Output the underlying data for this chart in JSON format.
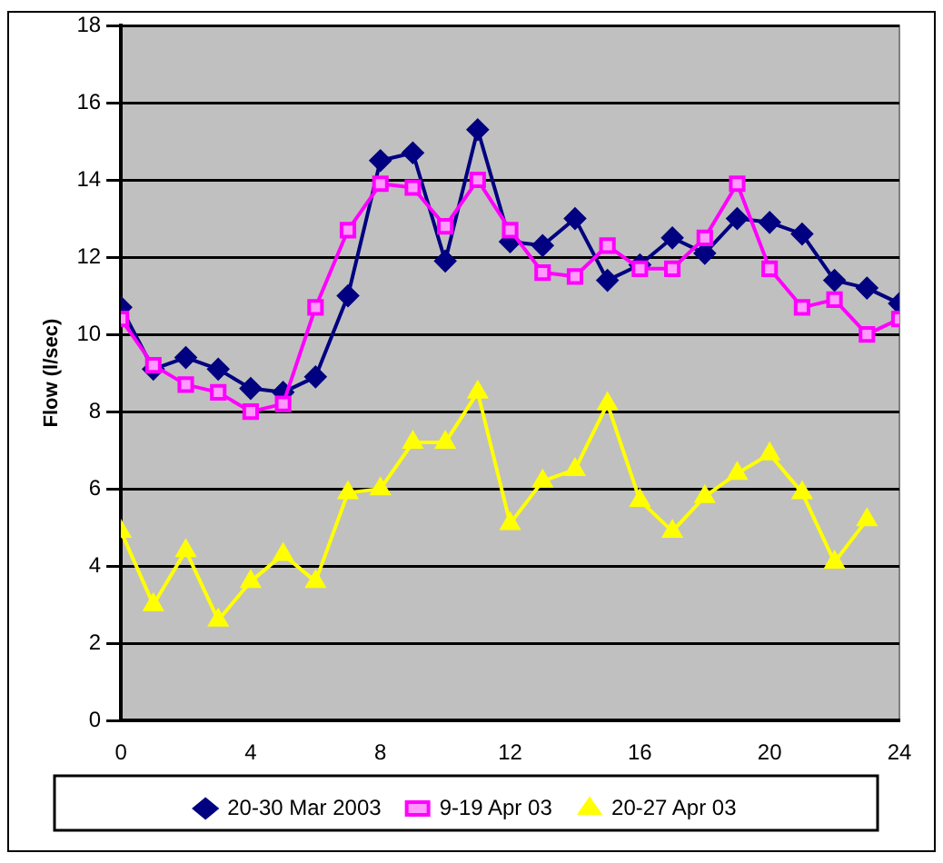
{
  "chart_data": {
    "type": "line",
    "ylabel": "Flow (l/sec)",
    "xlim": [
      0,
      24
    ],
    "xticks": [
      0,
      4,
      8,
      12,
      16,
      20,
      24
    ],
    "ylim": [
      0,
      18
    ],
    "yticks": [
      0,
      2,
      4,
      6,
      8,
      10,
      12,
      14,
      16,
      18
    ],
    "grid": "y",
    "legend": "bottom",
    "series": [
      {
        "name": "20-30 Mar 2003",
        "color": "#000080",
        "marker": "diamond",
        "x": [
          0,
          1,
          2,
          3,
          4,
          5,
          6,
          7,
          8,
          9,
          10,
          11,
          12,
          13,
          14,
          15,
          16,
          17,
          18,
          19,
          20,
          21,
          22,
          23,
          24
        ],
        "values": [
          10.7,
          9.1,
          9.4,
          9.1,
          8.6,
          8.5,
          8.9,
          11.0,
          14.5,
          14.7,
          11.9,
          15.3,
          12.4,
          12.3,
          13.0,
          11.4,
          11.8,
          12.5,
          12.1,
          13.0,
          12.9,
          12.6,
          11.4,
          11.2,
          10.8
        ]
      },
      {
        "name": "9-19 Apr 03",
        "color": "#ff00ff",
        "marker": "square",
        "x": [
          0,
          1,
          2,
          3,
          4,
          5,
          6,
          7,
          8,
          9,
          10,
          11,
          12,
          13,
          14,
          15,
          16,
          17,
          18,
          19,
          20,
          21,
          22,
          23,
          24
        ],
        "values": [
          10.4,
          9.2,
          8.7,
          8.5,
          8.0,
          8.2,
          10.7,
          12.7,
          13.9,
          13.8,
          12.8,
          14.0,
          12.7,
          11.6,
          11.5,
          12.3,
          11.7,
          11.7,
          12.5,
          13.9,
          11.7,
          10.7,
          10.9,
          10.0,
          10.4
        ]
      },
      {
        "name": "20-27 Apr 03",
        "color": "#ffff00",
        "marker": "triangle",
        "x": [
          0,
          1,
          2,
          3,
          4,
          5,
          6,
          7,
          8,
          9,
          10,
          11,
          12,
          13,
          14,
          15,
          16,
          17,
          18,
          19,
          20,
          21,
          22,
          23
        ],
        "values": [
          4.9,
          3.0,
          4.4,
          2.6,
          3.6,
          4.3,
          3.6,
          5.9,
          6.0,
          7.2,
          7.2,
          8.5,
          5.1,
          6.2,
          6.5,
          8.2,
          5.7,
          4.9,
          5.8,
          6.4,
          6.9,
          5.9,
          4.1,
          5.2
        ]
      }
    ]
  }
}
